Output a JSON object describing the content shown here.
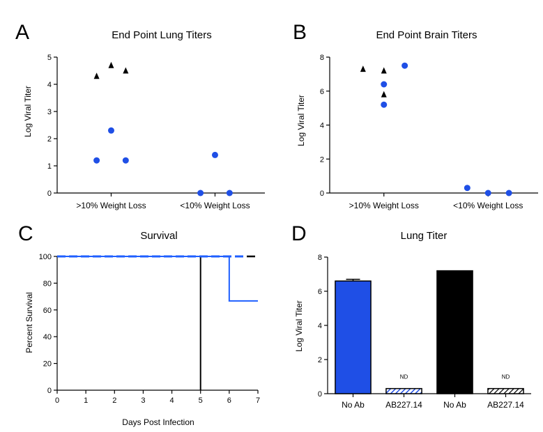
{
  "panels": {
    "A": {
      "letter": "A"
    },
    "B": {
      "letter": "B"
    },
    "C": {
      "letter": "C"
    },
    "D": {
      "letter": "D"
    }
  },
  "colors": {
    "blue": "#1f4fe6",
    "black": "#000000",
    "line_blue": "#1f5fff"
  },
  "chart_data": [
    {
      "id": "A",
      "type": "scatter",
      "title": "End Point Lung Titers",
      "ylabel": "Log Viral Titer",
      "xlabel": "",
      "ylim": [
        0,
        5
      ],
      "yticks": [
        0,
        1,
        2,
        3,
        4,
        5
      ],
      "categories": [
        ">10% Weight Loss",
        "<10% Weight Loss"
      ],
      "series": [
        {
          "marker": "triangle",
          "color": "#000000",
          "points": [
            {
              "cat": 0,
              "dx": -0.07,
              "y": 4.3
            },
            {
              "cat": 0,
              "dx": 0.0,
              "y": 4.7
            },
            {
              "cat": 0,
              "dx": 0.07,
              "y": 4.5
            }
          ]
        },
        {
          "marker": "circle",
          "color": "#1f4fe6",
          "points": [
            {
              "cat": 0,
              "dx": 0.0,
              "y": 2.3
            },
            {
              "cat": 0,
              "dx": -0.07,
              "y": 1.2
            },
            {
              "cat": 0,
              "dx": 0.07,
              "y": 1.2
            },
            {
              "cat": 1,
              "dx": 0.0,
              "y": 1.4
            },
            {
              "cat": 1,
              "dx": -0.07,
              "y": 0.0
            },
            {
              "cat": 1,
              "dx": 0.07,
              "y": 0.0
            }
          ]
        }
      ]
    },
    {
      "id": "B",
      "type": "scatter",
      "title": "End Point Brain Titers",
      "ylabel": "Log Viral Titer",
      "xlabel": "",
      "ylim": [
        0,
        8
      ],
      "yticks": [
        0,
        2,
        4,
        6,
        8
      ],
      "categories": [
        ">10% Weight Loss",
        "<10% Weight Loss"
      ],
      "series": [
        {
          "marker": "triangle",
          "color": "#000000",
          "points": [
            {
              "cat": 0,
              "dx": -0.1,
              "y": 7.3
            },
            {
              "cat": 0,
              "dx": 0.0,
              "y": 7.2
            },
            {
              "cat": 0,
              "dx": 0.0,
              "y": 5.8
            }
          ]
        },
        {
          "marker": "circle",
          "color": "#1f4fe6",
          "points": [
            {
              "cat": 0,
              "dx": 0.1,
              "y": 7.5
            },
            {
              "cat": 0,
              "dx": 0.0,
              "y": 6.4
            },
            {
              "cat": 0,
              "dx": 0.0,
              "y": 5.2
            },
            {
              "cat": 1,
              "dx": -0.1,
              "y": 0.3
            },
            {
              "cat": 1,
              "dx": 0.0,
              "y": 0.0
            },
            {
              "cat": 1,
              "dx": 0.1,
              "y": 0.0
            }
          ]
        }
      ]
    },
    {
      "id": "C",
      "type": "line",
      "title": "Survival",
      "ylabel": "Percent Survival",
      "xlabel": "Days Post Infection",
      "xlim": [
        0,
        7
      ],
      "ylim": [
        0,
        100
      ],
      "xticks": [
        0,
        1,
        2,
        3,
        4,
        5,
        6,
        7
      ],
      "yticks": [
        0,
        20,
        40,
        60,
        80,
        100
      ],
      "series": [
        {
          "style": "solid",
          "color": "#000000",
          "width": 2,
          "x": [
            0,
            5,
            5
          ],
          "y": [
            100,
            100,
            0
          ]
        },
        {
          "style": "dashed",
          "color": "#000000",
          "width": 2.5,
          "x": [
            0,
            7
          ],
          "y": [
            100,
            100
          ]
        },
        {
          "style": "solid",
          "color": "#1f5fff",
          "width": 2,
          "x": [
            0,
            6,
            6,
            7
          ],
          "y": [
            100,
            100,
            66.7,
            66.7
          ]
        },
        {
          "style": "dashed",
          "color": "#1f5fff",
          "width": 3,
          "x": [
            0,
            6.5
          ],
          "y": [
            100,
            100
          ]
        }
      ]
    },
    {
      "id": "D",
      "type": "bar",
      "title": "Lung Titer",
      "ylabel": "Log Viral Titer",
      "xlabel": "",
      "ylim": [
        0,
        8
      ],
      "yticks": [
        0,
        2,
        4,
        6,
        8
      ],
      "categories": [
        "No Ab",
        "AB227.14",
        "No Ab",
        "AB227.14"
      ],
      "values": [
        6.6,
        0.3,
        7.2,
        0.3
      ],
      "errors": [
        0.1,
        0,
        0,
        0
      ],
      "fills": [
        "blue",
        "blue-hatch",
        "black",
        "black-hatch"
      ],
      "annotations": [
        "",
        "ND",
        "",
        "ND"
      ]
    }
  ]
}
